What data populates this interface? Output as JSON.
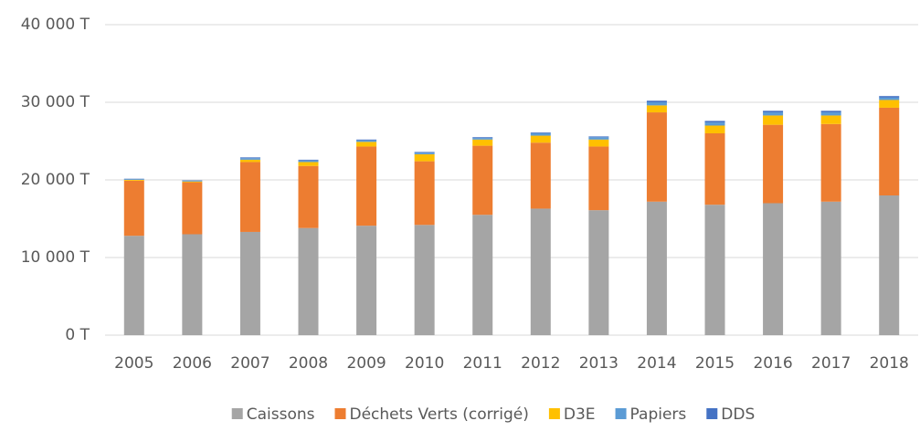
{
  "chart_data": {
    "type": "stacked_bar",
    "categories": [
      "2005",
      "2006",
      "2007",
      "2008",
      "2009",
      "2010",
      "2011",
      "2012",
      "2013",
      "2014",
      "2015",
      "2016",
      "2017",
      "2018"
    ],
    "series": [
      {
        "name": "Caissons",
        "color": "#a5a5a5",
        "values": [
          12800,
          13000,
          13300,
          13800,
          14100,
          14200,
          15500,
          16300,
          16100,
          17200,
          16800,
          17000,
          17200,
          18000
        ]
      },
      {
        "name": "Déchets Verts (corrigé)",
        "color": "#ed7d31",
        "values": [
          7100,
          6700,
          9000,
          8000,
          10200,
          8200,
          8900,
          8500,
          8200,
          11500,
          9200,
          10100,
          10000,
          11300
        ]
      },
      {
        "name": "D3E",
        "color": "#ffc000",
        "values": [
          100,
          100,
          300,
          500,
          600,
          900,
          800,
          900,
          900,
          900,
          1000,
          1200,
          1100,
          1000
        ]
      },
      {
        "name": "Papiers",
        "color": "#5b9bd5",
        "values": [
          100,
          100,
          200,
          200,
          200,
          200,
          200,
          300,
          300,
          400,
          400,
          400,
          400,
          300
        ]
      },
      {
        "name": "DDS",
        "color": "#4472c4",
        "values": [
          50,
          50,
          100,
          100,
          100,
          100,
          100,
          100,
          100,
          200,
          200,
          200,
          200,
          200
        ]
      }
    ],
    "ylim": [
      0,
      40000
    ],
    "yticks": [
      {
        "value": 0,
        "label": "0 T"
      },
      {
        "value": 10000,
        "label": "10 000 T"
      },
      {
        "value": 20000,
        "label": "20 000 T"
      },
      {
        "value": 30000,
        "label": "30 000 T"
      },
      {
        "value": 40000,
        "label": "40 000 T"
      }
    ],
    "grid": true
  }
}
